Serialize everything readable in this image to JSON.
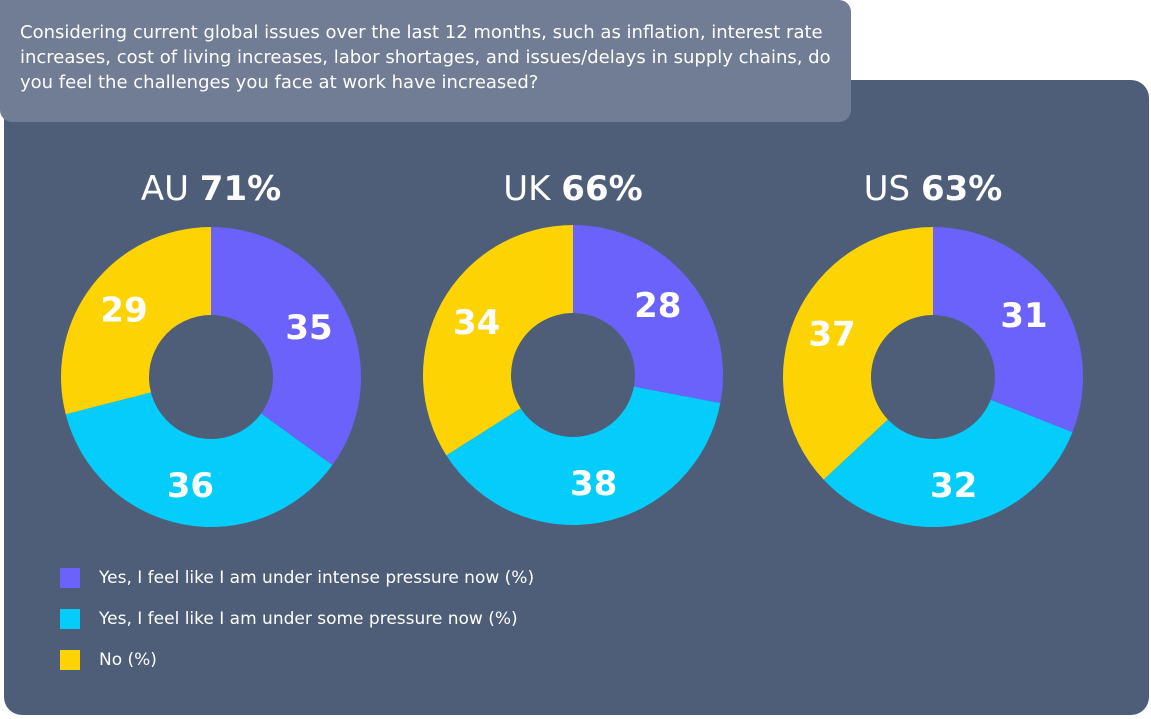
{
  "question": "Considering current global issues over the last 12 months, such as inflation, interest rate increases, cost of living increases, labor shortages, and issues/delays in supply chains, do you feel the challenges you face at work have increased?",
  "colors": {
    "intense": "#6a62fb",
    "some": "#05cdfb",
    "no": "#fed303",
    "panel": "#4e5e79",
    "question_box": "#707d95"
  },
  "legend": [
    {
      "label": "Yes, I feel like I am under intense pressure now (%)",
      "color": "#6a62fb"
    },
    {
      "label": "Yes, I feel like I am under some pressure now (%)",
      "color": "#05cdfb"
    },
    {
      "label": "No (%)",
      "color": "#fed303"
    }
  ],
  "chart_data": [
    {
      "type": "pie",
      "title_country": "AU",
      "title_value": "71%",
      "categories": [
        "Yes, I feel like I am under intense pressure now (%)",
        "Yes, I feel like I am under some pressure now (%)",
        "No (%)"
      ],
      "values": [
        35,
        36,
        29
      ],
      "colors": [
        "#6a62fb",
        "#05cdfb",
        "#fed303"
      ]
    },
    {
      "type": "pie",
      "title_country": "UK",
      "title_value": "66%",
      "categories": [
        "Yes, I feel like I am under intense pressure now (%)",
        "Yes, I feel like I am under some pressure now (%)",
        "No (%)"
      ],
      "values": [
        28,
        38,
        34
      ],
      "colors": [
        "#6a62fb",
        "#05cdfb",
        "#fed303"
      ]
    },
    {
      "type": "pie",
      "title_country": "US",
      "title_value": "63%",
      "categories": [
        "Yes, I feel like I am under intense pressure now (%)",
        "Yes, I feel like I am under some pressure now (%)",
        "No (%)"
      ],
      "values": [
        31,
        32,
        37
      ],
      "colors": [
        "#6a62fb",
        "#05cdfb",
        "#fed303"
      ]
    }
  ]
}
